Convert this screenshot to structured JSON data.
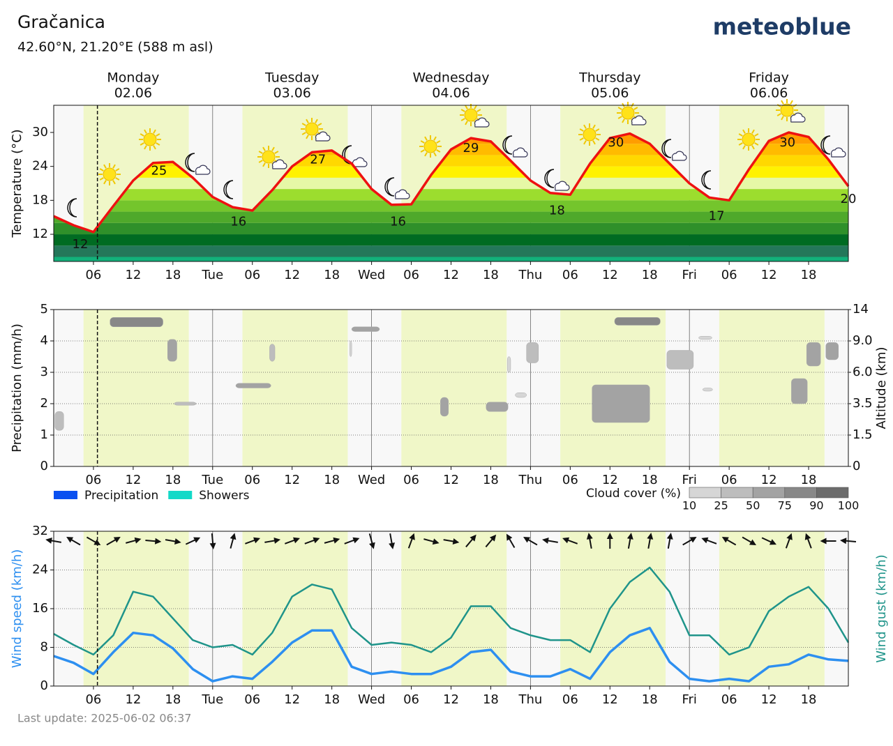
{
  "page": {
    "title": "Gračanica",
    "location": "42.60°N, 21.20°E (588 m asl)",
    "brand": "meteoblue",
    "last_update": "Last update: 2025-06-02 06:37"
  },
  "timeline": {
    "daylight": [
      [
        4.5,
        20.4
      ],
      [
        28.5,
        44.4
      ],
      [
        52.5,
        68.4
      ],
      [
        76.5,
        92.4
      ],
      [
        100.5,
        116.4
      ]
    ],
    "now": 6.6
  },
  "chart_data": [
    {
      "type": "line",
      "ylabel": "Temperature (°C)",
      "days": [
        "Monday",
        "Tuesday",
        "Wednesday",
        "Thursday",
        "Friday"
      ],
      "dates": [
        "02.06",
        "03.06",
        "04.06",
        "05.06",
        "06.06"
      ],
      "x": [
        0,
        3,
        6,
        9,
        12,
        15,
        18,
        21,
        24,
        27,
        30,
        33,
        36,
        39,
        42,
        45,
        48,
        51,
        54,
        57,
        60,
        63,
        66,
        69,
        72,
        75,
        78,
        81,
        84,
        87,
        90,
        93,
        96,
        99,
        102,
        105,
        108,
        111,
        114,
        117,
        120
      ],
      "values": [
        15.2,
        13.6,
        12.4,
        17.0,
        21.5,
        24.6,
        24.8,
        22.0,
        18.6,
        16.8,
        16.2,
        19.8,
        24.0,
        26.5,
        26.8,
        24.5,
        20.0,
        17.2,
        17.3,
        22.5,
        27.0,
        29.0,
        28.4,
        25.0,
        21.5,
        19.3,
        19.0,
        24.5,
        29.0,
        29.8,
        28.0,
        24.5,
        21.0,
        18.5,
        18.0,
        23.5,
        28.5,
        30.0,
        29.2,
        25.2,
        20.5
      ],
      "color": "#ee1111",
      "extremes": {
        "x": [
          4,
          15.9,
          27.9,
          39.9,
          52,
          63,
          76,
          84.9,
          100.1,
          110.8,
          120
        ],
        "values": [
          12,
          25,
          16,
          27,
          16,
          29,
          18,
          30,
          17,
          30,
          20
        ]
      },
      "xlim": [
        0,
        120
      ],
      "ylim": [
        7.2,
        34.8
      ],
      "yticks": [
        12,
        18,
        24,
        30
      ],
      "xticks": [
        {
          "value": 6,
          "label": "06"
        },
        12,
        18,
        {
          "value": 24,
          "label": "Tue"
        },
        {
          "value": 30,
          "label": "06"
        },
        {
          "value": 36,
          "label": "12"
        },
        {
          "value": 42,
          "label": "18"
        },
        {
          "value": 48,
          "label": "Wed"
        },
        {
          "value": 54,
          "label": "06"
        },
        {
          "value": 60,
          "label": "12"
        },
        {
          "value": 66,
          "label": "18"
        },
        {
          "value": 72,
          "label": "Thu"
        },
        {
          "value": 78,
          "label": "06"
        },
        {
          "value": 84,
          "label": "12"
        },
        {
          "value": 90,
          "label": "18"
        },
        {
          "value": 96,
          "label": "Fri"
        },
        {
          "value": 102,
          "label": "06"
        },
        {
          "value": 108,
          "label": "12"
        },
        {
          "value": 114,
          "label": "18"
        }
      ],
      "fill_levels": [
        6,
        8,
        10,
        12,
        14,
        16,
        18,
        20,
        22,
        24,
        26,
        28,
        30,
        32,
        34,
        36
      ],
      "fill_colors": [
        "#12b07a",
        "#24775a",
        "#006b22",
        "#2f902a",
        "#4fa92b",
        "#74c52c",
        "#9cdd2e",
        "#e6f8a6",
        "#fff200",
        "#ffd800",
        "#ffbb00",
        "#ff9d00",
        "#ff8200",
        "#ff6a00",
        "#ff5000"
      ],
      "grid": false
    },
    {
      "type": "bar",
      "ylabel": "Precipitation (mm/h)",
      "y2label": "Altitude (km)",
      "x": [
        0,
        3,
        6,
        9,
        12,
        15,
        18,
        21,
        24,
        27,
        30,
        33,
        36,
        39,
        42,
        45,
        48,
        51,
        54,
        57,
        60,
        63,
        66,
        69,
        72,
        75,
        78,
        81,
        84,
        87,
        90,
        93,
        96,
        99,
        102,
        105,
        108,
        111,
        114,
        117,
        120
      ],
      "series": [
        {
          "name": "Precipitation",
          "color": "#0a50f0",
          "values": [
            0,
            0,
            0,
            0,
            0,
            0,
            0,
            0,
            0,
            0,
            0,
            0,
            0,
            0,
            0,
            0,
            0,
            0,
            0,
            0,
            0,
            0,
            0,
            0,
            0,
            0,
            0,
            0,
            0,
            0,
            0,
            0,
            0,
            0,
            0,
            0,
            0,
            0,
            0,
            0,
            0
          ]
        },
        {
          "name": "Showers",
          "color": "#13d9c8",
          "values": [
            0,
            0,
            0,
            0,
            0,
            0,
            0,
            0,
            0,
            0,
            0,
            0,
            0,
            0,
            0,
            0,
            0,
            0,
            0,
            0,
            0,
            0,
            0,
            0,
            0,
            0,
            0,
            0,
            0,
            0,
            0,
            0,
            0,
            0,
            0,
            0,
            0,
            0,
            0,
            0,
            0
          ]
        }
      ],
      "xlim": [
        0,
        120
      ],
      "ylim": [
        0,
        5
      ],
      "yticks": [
        0,
        1,
        2,
        3,
        4,
        5
      ],
      "y2lim": [
        0,
        14
      ],
      "y2ticks": [
        0,
        1.5,
        3.5,
        {
          "value": 6,
          "label": "6.0"
        },
        {
          "value": 9,
          "label": "9.0"
        },
        14
      ],
      "xticks": [
        {
          "value": 6,
          "label": "06"
        },
        12,
        18,
        {
          "value": 24,
          "label": "Tue"
        },
        {
          "value": 30,
          "label": "06"
        },
        {
          "value": 36,
          "label": "12"
        },
        {
          "value": 42,
          "label": "18"
        },
        {
          "value": 48,
          "label": "Wed"
        },
        {
          "value": 54,
          "label": "06"
        },
        {
          "value": 60,
          "label": "12"
        },
        {
          "value": 66,
          "label": "18"
        },
        {
          "value": 72,
          "label": "Thu"
        },
        {
          "value": 78,
          "label": "06"
        },
        {
          "value": 84,
          "label": "12"
        },
        {
          "value": 90,
          "label": "18"
        },
        {
          "value": 96,
          "label": "Fri"
        },
        {
          "value": 102,
          "label": "06"
        },
        {
          "value": 108,
          "label": "12"
        },
        {
          "value": 114,
          "label": "18"
        }
      ],
      "grid": true,
      "cloud_cover": {
        "label": "Cloud cover (%)",
        "ticks": [
          10,
          25,
          50,
          75,
          90,
          100
        ],
        "colors": [
          "#d6d6d6",
          "#bdbdbd",
          "#a3a3a3",
          "#888888",
          "#6c6c6c"
        ],
        "patches": [
          {
            "x": [
              0.2,
              1.5
            ],
            "y": [
              1.15,
              1.75
            ],
            "value": 25
          },
          {
            "x": [
              8.5,
              16.5
            ],
            "y": [
              4.45,
              4.75
            ],
            "value": 75
          },
          {
            "x": [
              17.2,
              18.6
            ],
            "y": [
              3.35,
              4.05
            ],
            "value": 50
          },
          {
            "x": [
              18.2,
              21.5
            ],
            "y": [
              1.95,
              2.05
            ],
            "value": 25
          },
          {
            "x": [
              27.5,
              32.8
            ],
            "y": [
              2.5,
              2.65
            ],
            "value": 50
          },
          {
            "x": [
              32.6,
              33.4
            ],
            "y": [
              3.35,
              3.9
            ],
            "value": 25
          },
          {
            "x": [
              44.7,
              45.0
            ],
            "y": [
              3.5,
              4.0
            ],
            "value": 10
          },
          {
            "x": [
              45,
              49.2
            ],
            "y": [
              4.3,
              4.45
            ],
            "value": 50
          },
          {
            "x": [
              58.4,
              59.6
            ],
            "y": [
              1.6,
              2.2
            ],
            "value": 50
          },
          {
            "x": [
              65.3,
              68.6
            ],
            "y": [
              1.75,
              2.05
            ],
            "value": 50
          },
          {
            "x": [
              68.5,
              69.0
            ],
            "y": [
              3.0,
              3.5
            ],
            "value": 10
          },
          {
            "x": [
              71.4,
              73.2
            ],
            "y": [
              3.3,
              3.95
            ],
            "value": 25
          },
          {
            "x": [
              69.7,
              71.4
            ],
            "y": [
              2.2,
              2.35
            ],
            "value": 10
          },
          {
            "x": [
              81.3,
              90.0
            ],
            "y": [
              1.4,
              2.6
            ],
            "value": 50
          },
          {
            "x": [
              84.7,
              91.6
            ],
            "y": [
              4.5,
              4.75
            ],
            "value": 75
          },
          {
            "x": [
              92.6,
              96.6
            ],
            "y": [
              3.1,
              3.7
            ],
            "value": 25
          },
          {
            "x": [
              97.4,
              99.4
            ],
            "y": [
              4.05,
              4.15
            ],
            "value": 10
          },
          {
            "x": [
              98.0,
              99.5
            ],
            "y": [
              2.4,
              2.5
            ],
            "value": 10
          },
          {
            "x": [
              111.4,
              113.8
            ],
            "y": [
              2.0,
              2.8
            ],
            "value": 50
          },
          {
            "x": [
              113.7,
              115.8
            ],
            "y": [
              3.2,
              3.95
            ],
            "value": 50
          },
          {
            "x": [
              116.6,
              118.5
            ],
            "y": [
              3.4,
              3.95
            ],
            "value": 50
          }
        ]
      }
    },
    {
      "type": "line",
      "ylabel": "Wind speed (km/h)",
      "y2label": "Wind gust (km/h)",
      "x": [
        0,
        3,
        6,
        9,
        12,
        15,
        18,
        21,
        24,
        27,
        30,
        33,
        36,
        39,
        42,
        45,
        48,
        51,
        54,
        57,
        60,
        63,
        66,
        69,
        72,
        75,
        78,
        81,
        84,
        87,
        90,
        93,
        96,
        99,
        102,
        105,
        108,
        111,
        114,
        117,
        120
      ],
      "series": [
        {
          "color": "#2d8ff0",
          "values": [
            6.2,
            4.8,
            2.5,
            7.0,
            11.0,
            10.5,
            7.8,
            3.5,
            1.0,
            2.0,
            1.5,
            5.0,
            9.0,
            11.5,
            11.5,
            4.0,
            2.5,
            3.0,
            2.5,
            2.5,
            4.0,
            7.0,
            7.5,
            3.0,
            2.0,
            2.0,
            3.5,
            1.5,
            7.0,
            10.5,
            12.0,
            5.0,
            1.5,
            1.0,
            1.5,
            1.0,
            4.0,
            4.5,
            6.5,
            5.5,
            5.2
          ]
        },
        {
          "color": "#1f948a",
          "axis": "y2",
          "values": [
            10.8,
            8.5,
            6.5,
            10.5,
            19.5,
            18.5,
            14.0,
            9.5,
            8.0,
            8.5,
            6.5,
            11.0,
            18.5,
            21.0,
            20.0,
            12.0,
            8.5,
            9.0,
            8.5,
            7.0,
            10.0,
            16.5,
            16.5,
            12.0,
            10.5,
            9.5,
            9.5,
            7.0,
            16.0,
            21.5,
            24.5,
            19.5,
            10.5,
            10.5,
            6.5,
            8.0,
            15.5,
            18.5,
            20.5,
            16.0,
            9.0
          ]
        }
      ],
      "wind_direction": [
        280,
        300,
        120,
        60,
        75,
        95,
        100,
        65,
        175,
        15,
        70,
        80,
        70,
        70,
        75,
        70,
        165,
        170,
        20,
        105,
        100,
        40,
        40,
        330,
        300,
        280,
        290,
        350,
        0,
        10,
        10,
        10,
        60,
        290,
        300,
        120,
        115,
        20,
        340,
        270,
        275
      ],
      "xlim": [
        0,
        120
      ],
      "ylim": [
        0,
        32
      ],
      "y2lim": [
        0,
        32
      ],
      "yticks": [
        0,
        8,
        16,
        24,
        32
      ],
      "xticks": [
        {
          "value": 6,
          "label": "06"
        },
        12,
        18,
        {
          "value": 24,
          "label": "Tue"
        },
        {
          "value": 30,
          "label": "06"
        },
        {
          "value": 36,
          "label": "12"
        },
        {
          "value": 42,
          "label": "18"
        },
        {
          "value": 48,
          "label": "Wed"
        },
        {
          "value": 54,
          "label": "06"
        },
        {
          "value": 60,
          "label": "12"
        },
        {
          "value": 66,
          "label": "18"
        },
        {
          "value": 72,
          "label": "Thu"
        },
        {
          "value": 78,
          "label": "06"
        },
        {
          "value": 84,
          "label": "12"
        },
        {
          "value": 90,
          "label": "18"
        },
        {
          "value": 96,
          "label": "Fri"
        },
        {
          "value": 102,
          "label": "06"
        },
        {
          "value": 108,
          "label": "12"
        },
        {
          "value": 114,
          "label": "18"
        }
      ],
      "grid": true
    }
  ]
}
